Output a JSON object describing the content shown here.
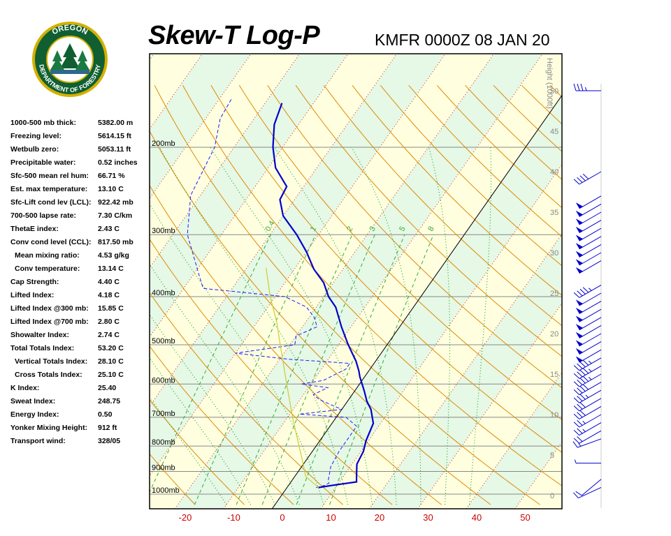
{
  "header": {
    "title": "Skew-T Log-P",
    "station_time": "KMFR 0000Z 08 JAN 20",
    "logo_text": "OREGON DEPARTMENT OF FORESTRY"
  },
  "indices": [
    {
      "label": "1000-500 mb thick:",
      "value": "5382.00 m"
    },
    {
      "label": "Freezing level:",
      "value": "5614.15 ft"
    },
    {
      "label": "Wetbulb zero:",
      "value": "5053.11 ft"
    },
    {
      "label": "Precipitable water:",
      "value": "0.52 inches"
    },
    {
      "label": "Sfc-500 mean rel hum:",
      "value": "66.71 %"
    },
    {
      "label": "Est. max temperature:",
      "value": "13.10 C"
    },
    {
      "label": "Sfc-Lift cond lev (LCL):",
      "value": "922.42 mb"
    },
    {
      "label": "700-500 lapse rate:",
      "value": "7.30 C/km"
    },
    {
      "label": "ThetaE index:",
      "value": "2.43 C"
    },
    {
      "label": "Conv cond level (CCL):",
      "value": "817.50 mb"
    },
    {
      "label": "Mean mixing ratio:",
      "value": "4.53 g/kg",
      "indent": true
    },
    {
      "label": "Conv temperature:",
      "value": "13.14 C",
      "indent": true
    },
    {
      "label": "Cap Strength:",
      "value": "4.40 C"
    },
    {
      "label": "Lifted Index:",
      "value": "4.18 C"
    },
    {
      "label": "Lifted Index @300 mb:",
      "value": "15.85 C"
    },
    {
      "label": "Lifted Index @700 mb:",
      "value": "2.80 C"
    },
    {
      "label": "Showalter Index:",
      "value": "2.74 C"
    },
    {
      "label": "Total Totals Index:",
      "value": "53.20 C"
    },
    {
      "label": "Vertical Totals Index:",
      "value": "28.10 C",
      "indent": true
    },
    {
      "label": "Cross Totals Index:",
      "value": "25.10 C",
      "indent": true
    },
    {
      "label": "K Index:",
      "value": "25.40"
    },
    {
      "label": "Sweat Index:",
      "value": "248.75"
    },
    {
      "label": "Energy Index:",
      "value": "0.50"
    },
    {
      "label": "Yonker Mixing Height:",
      "value": "912 ft"
    },
    {
      "label": "Transport wind:",
      "value": "328/05"
    }
  ],
  "chart_data": {
    "type": "line",
    "title": "Skew-T Log-P",
    "pressure_levels_mb": [
      1000,
      900,
      800,
      700,
      600,
      500,
      400,
      300,
      200
    ],
    "pressure_labels": [
      "1000mb",
      "900mb",
      "800mb",
      "700mb",
      "600mb",
      "500mb",
      "400mb",
      "300mb",
      "200mb"
    ],
    "temperature_ticks_c": [
      -20,
      -10,
      0,
      10,
      20,
      30,
      40,
      50
    ],
    "temperature_tick_labels": [
      "-20",
      "-10",
      "0",
      "10",
      "20",
      "30",
      "40",
      "50"
    ],
    "height_axis_label": "Height (1000ft)",
    "height_ticks": [
      0,
      5,
      10,
      15,
      20,
      25,
      30,
      35,
      40,
      45,
      50
    ],
    "mixing_ratio_labels": [
      "0.4",
      "1",
      "2",
      "3",
      "5",
      "8"
    ],
    "colors": {
      "temperature": "#0000cc",
      "dewpoint": "#1a1aff",
      "parcel": "#cccc33",
      "dry_adiabat": "#e08a00",
      "moist_adiabat": "#009900",
      "mixing_ratio": "#33aa33",
      "isotherm": "#cc2200",
      "tick_labels": "#cc0000",
      "band_yellow": "#ffffe0",
      "band_green": "#e6f8e6",
      "wind_barbs": "#0000cc"
    },
    "series": [
      {
        "id": "temperature",
        "points": [
          {
            "p": 970,
            "t": 6.5
          },
          {
            "p": 960,
            "t": 9.0
          },
          {
            "p": 945,
            "t": 13.5
          },
          {
            "p": 915,
            "t": 12.5
          },
          {
            "p": 870,
            "t": 11.0
          },
          {
            "p": 820,
            "t": 10.5
          },
          {
            "p": 780,
            "t": 9.5
          },
          {
            "p": 720,
            "t": 8.5
          },
          {
            "p": 675,
            "t": 6.0
          },
          {
            "p": 650,
            "t": 4.0
          },
          {
            "p": 620,
            "t": 2.0
          },
          {
            "p": 580,
            "t": -1.0
          },
          {
            "p": 565,
            "t": -2.0
          },
          {
            "p": 540,
            "t": -4.0
          },
          {
            "p": 500,
            "t": -8.0
          },
          {
            "p": 460,
            "t": -12.0
          },
          {
            "p": 420,
            "t": -16.0
          },
          {
            "p": 400,
            "t": -19.0
          },
          {
            "p": 375,
            "t": -22.0
          },
          {
            "p": 352,
            "t": -26.0
          },
          {
            "p": 325,
            "t": -30.0
          },
          {
            "p": 300,
            "t": -34.5
          },
          {
            "p": 275,
            "t": -40.0
          },
          {
            "p": 255,
            "t": -43.0
          },
          {
            "p": 240,
            "t": -43.5
          },
          {
            "p": 220,
            "t": -48.5
          },
          {
            "p": 200,
            "t": -52.0
          },
          {
            "p": 180,
            "t": -55.0
          },
          {
            "p": 163,
            "t": -56.5
          }
        ]
      },
      {
        "id": "dewpoint",
        "points": [
          {
            "p": 970,
            "t": 6.0
          },
          {
            "p": 960,
            "t": 7.5
          },
          {
            "p": 950,
            "t": 8.0
          },
          {
            "p": 940,
            "t": 7.5
          },
          {
            "p": 920,
            "t": 7.0
          },
          {
            "p": 880,
            "t": 6.0
          },
          {
            "p": 820,
            "t": 5.5
          },
          {
            "p": 730,
            "t": 5.5
          },
          {
            "p": 700,
            "t": 2.0
          },
          {
            "p": 690,
            "t": -8.0
          },
          {
            "p": 675,
            "t": 0.0
          },
          {
            "p": 660,
            "t": -3.0
          },
          {
            "p": 645,
            "t": -6.0
          },
          {
            "p": 630,
            "t": -8.0
          },
          {
            "p": 610,
            "t": -6.0
          },
          {
            "p": 600,
            "t": -12.0
          },
          {
            "p": 590,
            "t": -8.0
          },
          {
            "p": 560,
            "t": -5.0
          },
          {
            "p": 545,
            "t": -5.0
          },
          {
            "p": 535,
            "t": -18.0
          },
          {
            "p": 520,
            "t": -30.0
          },
          {
            "p": 500,
            "t": -19.0
          },
          {
            "p": 480,
            "t": -20.0
          },
          {
            "p": 460,
            "t": -17.0
          },
          {
            "p": 440,
            "t": -19.0
          },
          {
            "p": 420,
            "t": -22.0
          },
          {
            "p": 400,
            "t": -28.0
          },
          {
            "p": 385,
            "t": -46.0
          },
          {
            "p": 360,
            "t": -49.0
          },
          {
            "p": 300,
            "t": -57.0
          },
          {
            "p": 250,
            "t": -62.0
          },
          {
            "p": 200,
            "t": -64.0
          },
          {
            "p": 175,
            "t": -67.0
          },
          {
            "p": 160,
            "t": -67.5
          }
        ]
      },
      {
        "id": "parcel",
        "points": [
          {
            "p": 970,
            "t": 6.5
          },
          {
            "p": 922,
            "t": 2.3
          },
          {
            "p": 850,
            "t": -1.0
          },
          {
            "p": 700,
            "t": -9.0
          },
          {
            "p": 600,
            "t": -15.0
          },
          {
            "p": 500,
            "t": -22.0
          },
          {
            "p": 450,
            "t": -26.0
          },
          {
            "p": 400,
            "t": -31.0
          },
          {
            "p": 350,
            "t": -36.0
          }
        ]
      }
    ],
    "wind_barbs": [
      {
        "height_kft": 1,
        "dir": 245,
        "speed_kt": 10
      },
      {
        "height_kft": 2,
        "dir": 230,
        "speed_kt": 10
      },
      {
        "height_kft": 4,
        "dir": 270,
        "speed_kt": 5
      },
      {
        "height_kft": 7,
        "dir": 250,
        "speed_kt": 15
      },
      {
        "height_kft": 8,
        "dir": 240,
        "speed_kt": 20
      },
      {
        "height_kft": 9,
        "dir": 240,
        "speed_kt": 25
      },
      {
        "height_kft": 10,
        "dir": 240,
        "speed_kt": 25
      },
      {
        "height_kft": 11,
        "dir": 240,
        "speed_kt": 30
      },
      {
        "height_kft": 12,
        "dir": 240,
        "speed_kt": 30
      },
      {
        "height_kft": 13,
        "dir": 240,
        "speed_kt": 35
      },
      {
        "height_kft": 14,
        "dir": 240,
        "speed_kt": 40
      },
      {
        "height_kft": 15,
        "dir": 240,
        "speed_kt": 45
      },
      {
        "height_kft": 16,
        "dir": 240,
        "speed_kt": 45
      },
      {
        "height_kft": 17,
        "dir": 240,
        "speed_kt": 45
      },
      {
        "height_kft": 18,
        "dir": 240,
        "speed_kt": 50
      },
      {
        "height_kft": 19,
        "dir": 240,
        "speed_kt": 50
      },
      {
        "height_kft": 20,
        "dir": 240,
        "speed_kt": 50
      },
      {
        "height_kft": 21,
        "dir": 240,
        "speed_kt": 50
      },
      {
        "height_kft": 22,
        "dir": 240,
        "speed_kt": 50
      },
      {
        "height_kft": 23,
        "dir": 240,
        "speed_kt": 50
      },
      {
        "height_kft": 24,
        "dir": 240,
        "speed_kt": 50
      },
      {
        "height_kft": 25,
        "dir": 240,
        "speed_kt": 50
      },
      {
        "height_kft": 26,
        "dir": 240,
        "speed_kt": 45
      },
      {
        "height_kft": 29,
        "dir": 240,
        "speed_kt": 50
      },
      {
        "height_kft": 30,
        "dir": 240,
        "speed_kt": 50
      },
      {
        "height_kft": 31,
        "dir": 240,
        "speed_kt": 50
      },
      {
        "height_kft": 32,
        "dir": 240,
        "speed_kt": 50
      },
      {
        "height_kft": 33,
        "dir": 240,
        "speed_kt": 50
      },
      {
        "height_kft": 34,
        "dir": 240,
        "speed_kt": 50
      },
      {
        "height_kft": 35,
        "dir": 240,
        "speed_kt": 50
      },
      {
        "height_kft": 36,
        "dir": 240,
        "speed_kt": 50
      },
      {
        "height_kft": 37,
        "dir": 240,
        "speed_kt": 50
      },
      {
        "height_kft": 40,
        "dir": 240,
        "speed_kt": 40
      },
      {
        "height_kft": 50,
        "dir": 270,
        "speed_kt": 35
      }
    ]
  }
}
